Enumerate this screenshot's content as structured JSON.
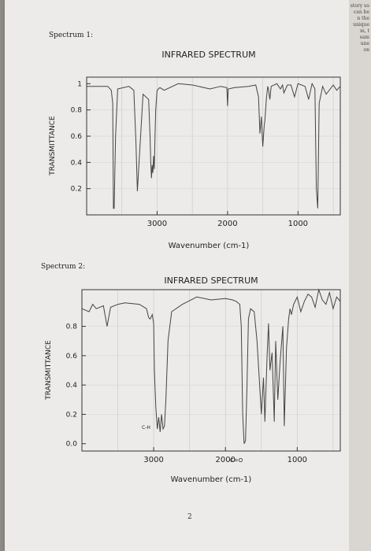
{
  "labels": {
    "spectrum1": "Spectrum 1:",
    "spectrum2": "Spectrum 2:",
    "page_number": "2",
    "edge_text": "story us\ncan be\nn the\nunique\nm, t\nsam\nune\non"
  },
  "chart_data": [
    {
      "type": "line",
      "title": "INFRARED SPECTRUM",
      "xlabel": "Wavenumber (cm-1)",
      "ylabel": "TRANSMITTANCE",
      "x_ticks": [
        "3000",
        "2000",
        "1000"
      ],
      "y_ticks": [
        "1",
        "0.8",
        "0.6",
        "0.4",
        "0.2"
      ],
      "xlim": [
        4000,
        400
      ],
      "ylim": [
        0,
        1.05
      ],
      "grid": true,
      "series": [
        {
          "x": [
            4000,
            3700,
            3650,
            3630,
            3620,
            3610,
            3590,
            3560,
            3400,
            3330,
            3300,
            3280,
            3200,
            3120,
            3100,
            3090,
            3080,
            3070,
            3060,
            3050,
            3040,
            3030,
            3020,
            3000,
            2960,
            2900,
            2700,
            2500,
            2250,
            2100,
            2010,
            2000,
            1990,
            1900,
            1700,
            1600,
            1560,
            1540,
            1520,
            1500,
            1480,
            1470,
            1450,
            1430,
            1420,
            1400,
            1380,
            1300,
            1250,
            1220,
            1200,
            1150,
            1100,
            1050,
            1000,
            900,
            850,
            800,
            760,
            740,
            720,
            700,
            650,
            600,
            500,
            450,
            400
          ],
          "y": [
            0.98,
            0.98,
            0.95,
            0.85,
            0.05,
            0.05,
            0.6,
            0.96,
            0.98,
            0.95,
            0.55,
            0.18,
            0.92,
            0.88,
            0.6,
            0.4,
            0.28,
            0.38,
            0.32,
            0.45,
            0.35,
            0.6,
            0.8,
            0.95,
            0.97,
            0.95,
            1.0,
            0.99,
            0.96,
            0.98,
            0.97,
            0.83,
            0.96,
            0.97,
            0.98,
            0.99,
            0.9,
            0.62,
            0.75,
            0.52,
            0.68,
            0.72,
            0.88,
            0.98,
            0.96,
            0.88,
            0.98,
            1.0,
            0.96,
            0.99,
            0.93,
            0.99,
            0.99,
            0.9,
            1.0,
            0.98,
            0.88,
            1.0,
            0.96,
            0.2,
            0.05,
            0.85,
            0.98,
            0.92,
            0.99,
            0.95,
            0.98
          ]
        }
      ]
    },
    {
      "type": "line",
      "title": "INFRARED SPECTRUM",
      "xlabel": "Wavenumber (cm-1)",
      "ylabel": "TRANSMITTANCE",
      "x_ticks": [
        "3000",
        "2000",
        "1000"
      ],
      "y_ticks": [
        "0.8",
        "0.6",
        "0.4",
        "0.2",
        "0.0"
      ],
      "xlim": [
        4000,
        400
      ],
      "ylim": [
        -0.05,
        1.05
      ],
      "grid": true,
      "annotations": [
        "C-H",
        "C=O"
      ],
      "series": [
        {
          "x": [
            4000,
            3900,
            3850,
            3800,
            3700,
            3650,
            3600,
            3500,
            3400,
            3200,
            3100,
            3070,
            3050,
            3020,
            3000,
            2990,
            2970,
            2950,
            2930,
            2910,
            2890,
            2870,
            2850,
            2830,
            2800,
            2750,
            2600,
            2400,
            2200,
            2000,
            1900,
            1850,
            1800,
            1780,
            1760,
            1740,
            1720,
            1700,
            1680,
            1650,
            1600,
            1560,
            1500,
            1470,
            1450,
            1420,
            1400,
            1380,
            1350,
            1320,
            1300,
            1270,
            1240,
            1200,
            1180,
            1150,
            1120,
            1100,
            1080,
            1050,
            1000,
            950,
            900,
            850,
            800,
            750,
            700,
            650,
            600,
            550,
            500,
            450,
            400
          ],
          "y": [
            0.92,
            0.9,
            0.95,
            0.92,
            0.94,
            0.8,
            0.93,
            0.95,
            0.96,
            0.95,
            0.92,
            0.86,
            0.85,
            0.88,
            0.82,
            0.5,
            0.25,
            0.1,
            0.18,
            0.08,
            0.2,
            0.1,
            0.12,
            0.3,
            0.7,
            0.9,
            0.95,
            1.0,
            0.98,
            0.99,
            0.98,
            0.97,
            0.95,
            0.8,
            0.2,
            0.0,
            0.02,
            0.4,
            0.85,
            0.92,
            0.9,
            0.7,
            0.2,
            0.45,
            0.15,
            0.6,
            0.82,
            0.5,
            0.62,
            0.15,
            0.7,
            0.3,
            0.55,
            0.8,
            0.12,
            0.65,
            0.85,
            0.92,
            0.88,
            0.95,
            1.0,
            0.9,
            0.97,
            1.02,
            1.0,
            0.93,
            1.05,
            0.98,
            0.95,
            1.03,
            0.92,
            1.0,
            0.97
          ]
        }
      ]
    }
  ]
}
